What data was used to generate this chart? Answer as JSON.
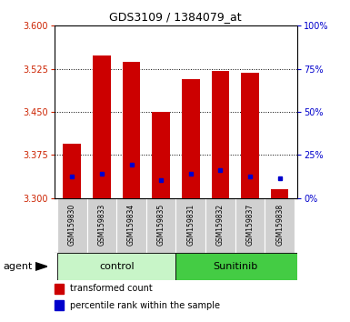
{
  "title": "GDS3109 / 1384079_at",
  "samples": [
    "GSM159830",
    "GSM159833",
    "GSM159834",
    "GSM159835",
    "GSM159831",
    "GSM159832",
    "GSM159837",
    "GSM159838"
  ],
  "groups": [
    "control",
    "control",
    "control",
    "control",
    "Sunitinib",
    "Sunitinib",
    "Sunitinib",
    "Sunitinib"
  ],
  "red_values": [
    3.395,
    3.548,
    3.537,
    3.45,
    3.507,
    3.522,
    3.518,
    3.315
  ],
  "blue_values_left": [
    3.338,
    3.342,
    3.358,
    3.332,
    3.342,
    3.348,
    3.338,
    3.335
  ],
  "red_base": 3.3,
  "ylim_left": [
    3.3,
    3.6
  ],
  "ylim_right": [
    0,
    100
  ],
  "yticks_left": [
    3.3,
    3.375,
    3.45,
    3.525,
    3.6
  ],
  "yticks_right": [
    0,
    25,
    50,
    75,
    100
  ],
  "bar_color": "#cc0000",
  "dot_color": "#0000cc",
  "bar_width": 0.6,
  "tick_label_color_left": "#cc2200",
  "tick_label_color_right": "#0000cc",
  "legend_items": [
    "transformed count",
    "percentile rank within the sample"
  ],
  "agent_label": "agent",
  "control_color": "#c8f5c8",
  "sunitinib_color": "#44cc44",
  "sample_bg_color": "#d0d0d0",
  "grid_color": "#000000"
}
